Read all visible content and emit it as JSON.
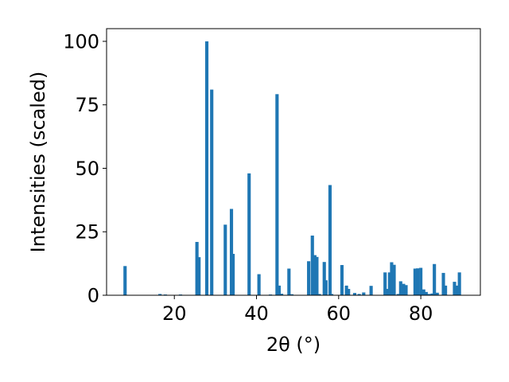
{
  "chart_data": {
    "type": "bar",
    "xlabel": "2θ (°)",
    "ylabel": "Intensities (scaled)",
    "xlim": [
      3.5,
      94.5
    ],
    "ylim": [
      0,
      105
    ],
    "xticks": [
      20,
      40,
      60,
      80
    ],
    "yticks": [
      0,
      25,
      50,
      75,
      100
    ],
    "grid": false,
    "bar_color": "#1f77b4",
    "bar_width": 0.8,
    "x": [
      8.0,
      16.5,
      17.8,
      21.5,
      25.5,
      26.0,
      27.9,
      29.1,
      32.4,
      33.9,
      34.3,
      38.2,
      40.6,
      43.4,
      45.0,
      45.5,
      46.1,
      47.9,
      48.6,
      52.7,
      53.6,
      54.2,
      54.7,
      55.3,
      56.5,
      56.9,
      57.9,
      58.3,
      60.8,
      61.9,
      62.4,
      63.9,
      65.0,
      66.1,
      67.9,
      71.3,
      71.8,
      72.4,
      72.9,
      73.5,
      74.5,
      75.1,
      75.8,
      76.4,
      78.6,
      79.2,
      80.0,
      80.7,
      81.3,
      82.0,
      82.8,
      83.3,
      84.0,
      85.5,
      86.0,
      88.2,
      88.9,
      89.4
    ],
    "values": [
      11.5,
      0.5,
      0.3,
      0.3,
      21.0,
      15.0,
      100,
      81.0,
      27.8,
      34.0,
      16.3,
      48.0,
      8.3,
      0.3,
      79.2,
      3.8,
      0.6,
      10.5,
      0.4,
      13.4,
      23.5,
      15.8,
      15.1,
      0.5,
      13.1,
      5.9,
      43.4,
      0.5,
      11.9,
      3.8,
      2.5,
      0.9,
      0.5,
      1.1,
      3.7,
      9.0,
      2.5,
      9.0,
      13.0,
      12.0,
      0.5,
      5.5,
      4.5,
      4.0,
      10.5,
      10.6,
      10.8,
      2.3,
      1.3,
      0.5,
      0.7,
      12.3,
      1.0,
      8.8,
      3.8,
      5.3,
      3.8,
      9.0
    ]
  }
}
